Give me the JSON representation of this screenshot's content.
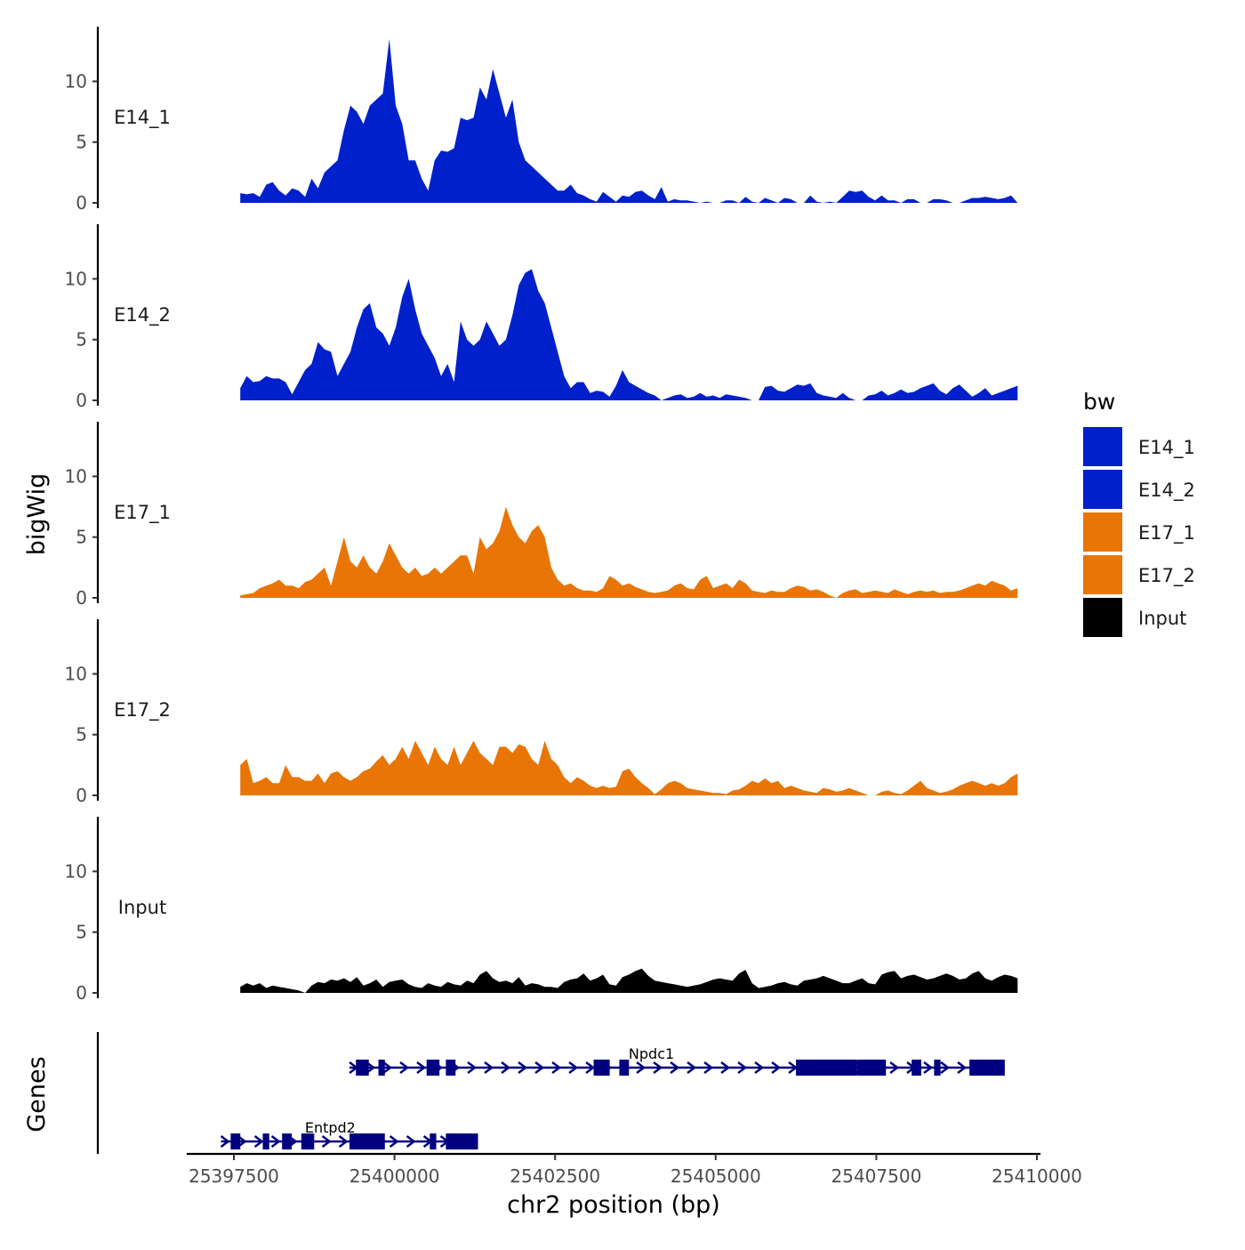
{
  "chart_data": {
    "type": "area",
    "chromosome": "chr2",
    "xlabel": "chr2 position (bp)",
    "ylabel": "bigWig",
    "genes_label": "Genes",
    "xlim": [
      25396500,
      25410000
    ],
    "x_ticks": [
      25397500,
      25400000,
      25402500,
      25405000,
      25407500,
      25410000
    ],
    "x_tick_labels": [
      "25397500",
      "25400000",
      "25402500",
      "25405000",
      "25407500",
      "25410000"
    ],
    "ylim": [
      0,
      14.5
    ],
    "y_ticks": [
      0,
      5,
      10
    ],
    "y_tick_labels": [
      "0",
      "5",
      "10"
    ],
    "data_start": 25399300,
    "data_step": 100,
    "tracks": [
      {
        "name": "E14_1",
        "color": "#0020CC",
        "x0": 25397600,
        "x1": 25409700,
        "step": 100,
        "values": [
          0.8,
          0.7,
          0.8,
          0.5,
          1.5,
          1.7,
          1.0,
          0.6,
          1.2,
          1.0,
          0.5,
          2.0,
          1.2,
          2.5,
          3.0,
          3.5,
          6.0,
          8.0,
          7.5,
          6.5,
          8.0,
          8.5,
          9.0,
          13.5,
          8.0,
          6.5,
          3.5,
          3.5,
          2.0,
          1.0,
          3.5,
          4.3,
          4.2,
          4.5,
          7.0,
          6.8,
          7.0,
          9.5,
          8.5,
          11.0,
          9.0,
          7.0,
          8.5,
          5.0,
          3.5,
          3.0,
          2.5,
          2.0,
          1.5,
          1.0,
          1.0,
          1.5,
          0.8,
          0.6,
          0.3,
          0.1,
          0.9,
          0.5,
          0.1,
          0.6,
          0.5,
          0.9,
          1.0,
          0.6,
          0.3,
          1.3,
          0.1,
          0.3,
          0.2,
          0.2,
          0.1,
          0.0,
          0.1,
          0.0,
          0.0,
          0.2,
          0.2,
          0.0,
          0.5,
          0.1,
          0.0,
          0.4,
          0.2,
          0.0,
          0.4,
          0.3,
          0.0,
          0.0,
          0.6,
          0.1,
          0.0,
          0.1,
          0.0,
          0.5,
          1.0,
          0.9,
          1.0,
          0.5,
          0.2,
          0.6,
          0.2,
          0.2,
          0.0,
          0.3,
          0.3,
          0.0,
          0.0,
          0.3,
          0.3,
          0.2,
          0.0,
          0.0,
          0.2,
          0.4,
          0.4,
          0.5,
          0.4,
          0.3,
          0.4,
          0.6,
          0.0
        ]
      },
      {
        "name": "E14_2",
        "color": "#0020CC",
        "x0": 25397600,
        "x1": 25409700,
        "step": 100,
        "values": [
          1.0,
          2.0,
          1.5,
          1.6,
          2.0,
          1.8,
          1.8,
          1.5,
          0.5,
          1.5,
          2.5,
          3.0,
          4.8,
          4.2,
          4.0,
          2.0,
          3.0,
          4.0,
          6.0,
          7.5,
          8.0,
          6.0,
          5.5,
          4.5,
          6.0,
          8.5,
          10.0,
          7.5,
          5.5,
          4.5,
          3.5,
          2.0,
          3.0,
          1.5,
          6.5,
          5.0,
          4.5,
          5.0,
          6.5,
          5.5,
          4.5,
          5.0,
          7.0,
          9.5,
          10.5,
          10.8,
          9.0,
          8.0,
          6.0,
          4.0,
          2.0,
          1.0,
          1.5,
          1.5,
          0.6,
          0.8,
          0.7,
          0.3,
          1.2,
          2.5,
          1.5,
          1.2,
          0.9,
          0.6,
          0.4,
          0.0,
          0.2,
          0.4,
          0.5,
          0.2,
          0.3,
          0.6,
          0.3,
          0.4,
          0.2,
          0.5,
          0.4,
          0.3,
          0.2,
          0.0,
          0.0,
          1.1,
          1.2,
          0.8,
          0.7,
          1.0,
          1.3,
          1.2,
          1.4,
          0.6,
          0.4,
          0.3,
          0.2,
          0.6,
          0.2,
          0.0,
          0.0,
          0.4,
          0.5,
          0.8,
          0.4,
          0.6,
          0.9,
          0.6,
          0.7,
          1.0,
          1.2,
          1.4,
          0.8,
          0.5,
          1.0,
          1.3,
          0.8,
          0.3,
          0.6,
          1.0,
          0.4,
          0.6,
          0.8,
          1.0,
          1.2
        ]
      },
      {
        "name": "E17_1",
        "color": "#E87506",
        "x0": 25397600,
        "x1": 25409700,
        "step": 100,
        "values": [
          0.2,
          0.3,
          0.4,
          0.8,
          1.0,
          1.2,
          1.5,
          1.0,
          1.0,
          0.8,
          1.3,
          1.5,
          2.0,
          2.5,
          1.0,
          3.0,
          5.0,
          3.0,
          2.5,
          3.5,
          2.5,
          2.0,
          3.0,
          4.5,
          3.5,
          2.5,
          2.0,
          2.5,
          1.8,
          2.0,
          2.5,
          2.0,
          2.5,
          3.0,
          3.5,
          3.5,
          2.0,
          5.0,
          4.0,
          4.5,
          5.5,
          7.5,
          6.0,
          5.0,
          4.5,
          5.5,
          6.0,
          5.0,
          2.5,
          1.5,
          1.0,
          1.2,
          0.8,
          0.6,
          0.6,
          0.5,
          0.8,
          1.8,
          1.5,
          1.0,
          1.2,
          0.9,
          0.7,
          0.5,
          0.4,
          0.5,
          0.6,
          1.0,
          1.2,
          0.8,
          0.7,
          1.5,
          1.8,
          0.8,
          1.0,
          1.2,
          0.8,
          1.5,
          1.2,
          0.6,
          0.5,
          0.4,
          0.6,
          0.5,
          0.5,
          0.8,
          1.0,
          0.9,
          0.6,
          0.7,
          0.5,
          0.2,
          0.0,
          0.4,
          0.6,
          0.7,
          0.4,
          0.5,
          0.6,
          0.5,
          0.4,
          0.7,
          0.5,
          0.3,
          0.5,
          0.6,
          0.5,
          0.6,
          0.4,
          0.5,
          0.5,
          0.6,
          0.8,
          1.0,
          1.2,
          1.0,
          1.4,
          1.2,
          1.0,
          0.6,
          0.8
        ]
      },
      {
        "name": "E17_2",
        "color": "#E87506",
        "x0": 25397600,
        "x1": 25409700,
        "step": 100,
        "values": [
          2.5,
          3.0,
          1.0,
          1.2,
          1.5,
          1.0,
          1.0,
          2.5,
          1.5,
          1.5,
          1.2,
          1.2,
          1.8,
          1.0,
          1.8,
          2.0,
          1.5,
          1.2,
          1.5,
          2.0,
          2.2,
          2.8,
          3.3,
          2.5,
          3.0,
          4.0,
          3.0,
          4.5,
          3.5,
          2.5,
          4.0,
          3.0,
          2.5,
          4.0,
          2.5,
          3.5,
          4.5,
          3.5,
          3.0,
          2.5,
          4.0,
          4.0,
          3.5,
          4.2,
          4.0,
          3.0,
          2.5,
          4.5,
          3.0,
          2.5,
          1.5,
          1.0,
          1.5,
          1.2,
          0.8,
          0.6,
          0.8,
          0.6,
          0.7,
          2.0,
          2.2,
          1.5,
          1.0,
          0.6,
          0.1,
          0.5,
          1.0,
          1.2,
          1.0,
          0.6,
          0.5,
          0.4,
          0.3,
          0.2,
          0.2,
          0.1,
          0.4,
          0.5,
          0.8,
          1.2,
          1.0,
          1.4,
          1.0,
          1.2,
          0.6,
          0.8,
          0.6,
          0.4,
          0.3,
          0.2,
          0.6,
          0.5,
          0.3,
          0.4,
          0.6,
          0.4,
          0.2,
          0.0,
          0.0,
          0.3,
          0.4,
          0.2,
          0.1,
          0.4,
          0.8,
          1.2,
          0.6,
          0.4,
          0.2,
          0.3,
          0.5,
          0.8,
          1.0,
          1.2,
          1.0,
          0.8,
          1.0,
          0.8,
          1.0,
          1.5,
          1.8
        ]
      },
      {
        "name": "Input",
        "color": "#000000",
        "x0": 25397600,
        "x1": 25409700,
        "step": 100,
        "values": [
          0.5,
          0.8,
          0.6,
          0.8,
          0.4,
          0.6,
          0.5,
          0.4,
          0.3,
          0.2,
          0.0,
          0.6,
          0.9,
          0.8,
          1.1,
          1.0,
          1.2,
          0.9,
          1.3,
          0.6,
          0.8,
          1.1,
          0.5,
          0.9,
          1.0,
          1.1,
          0.7,
          0.5,
          0.4,
          0.8,
          0.6,
          0.5,
          0.9,
          0.7,
          0.6,
          1.0,
          0.8,
          1.5,
          1.8,
          1.2,
          0.9,
          1.0,
          0.8,
          1.3,
          0.6,
          0.8,
          0.7,
          0.5,
          0.5,
          0.4,
          0.9,
          1.1,
          1.2,
          1.6,
          1.0,
          1.2,
          1.5,
          0.7,
          0.6,
          1.3,
          1.5,
          1.8,
          2.0,
          1.4,
          1.0,
          0.9,
          0.8,
          0.7,
          0.6,
          0.5,
          0.6,
          0.7,
          0.9,
          1.1,
          1.2,
          1.1,
          1.0,
          1.6,
          1.9,
          0.8,
          0.4,
          0.5,
          0.6,
          0.8,
          0.9,
          0.7,
          0.6,
          1.0,
          1.1,
          1.2,
          1.4,
          1.2,
          1.0,
          0.8,
          0.8,
          1.0,
          1.2,
          0.8,
          0.7,
          1.5,
          1.7,
          1.8,
          1.2,
          1.4,
          1.5,
          1.3,
          1.1,
          1.2,
          1.4,
          1.6,
          1.4,
          1.1,
          1.2,
          1.6,
          1.8,
          1.2,
          1.0,
          1.3,
          1.5,
          1.4,
          1.2
        ]
      }
    ],
    "genes": [
      {
        "name": "Npdc1",
        "strand": "+",
        "start": 25399300,
        "end": 25409400,
        "exons": [
          [
            25399400,
            25399600
          ],
          [
            25399750,
            25399850
          ],
          [
            25400500,
            25400700
          ],
          [
            25400800,
            25400950
          ],
          [
            25403100,
            25403350
          ],
          [
            25403500,
            25403650
          ],
          [
            25406250,
            25407200
          ],
          [
            25407200,
            25407650
          ],
          [
            25408050,
            25408200
          ],
          [
            25408400,
            25408500
          ],
          [
            25408950,
            25409300
          ],
          [
            25409250,
            25409500
          ]
        ]
      },
      {
        "name": "Entpd2",
        "strand": "+",
        "start": 25397300,
        "end": 25401300,
        "exons": [
          [
            25397450,
            25397600
          ],
          [
            25397950,
            25398050
          ],
          [
            25398250,
            25398400
          ],
          [
            25398550,
            25398750
          ],
          [
            25399300,
            25399850
          ],
          [
            25400550,
            25400650
          ],
          [
            25400800,
            25401300
          ]
        ]
      }
    ]
  },
  "legend": {
    "title": "bw",
    "items": [
      {
        "label": "E14_1",
        "color": "#0020CC"
      },
      {
        "label": "E14_2",
        "color": "#0020CC"
      },
      {
        "label": "E17_1",
        "color": "#E87506"
      },
      {
        "label": "E17_2",
        "color": "#E87506"
      },
      {
        "label": "Input",
        "color": "#000000"
      }
    ]
  },
  "gene_color": "#000080"
}
